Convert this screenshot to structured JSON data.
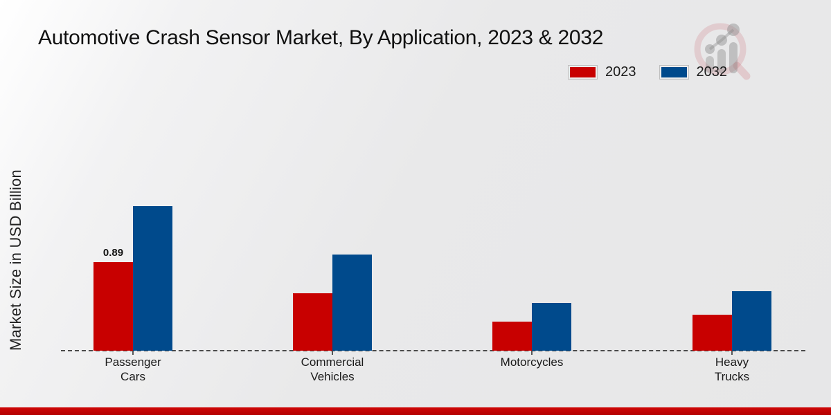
{
  "title": "Automotive Crash Sensor Market, By Application, 2023 & 2032",
  "ylabel": "Market Size in USD Billion",
  "colors": {
    "series_2023": "#c80000",
    "series_2032": "#004a8c",
    "axis_line": "#4a4a4a",
    "bottom_strip": "#c40404",
    "text": "#1a1a1a"
  },
  "legend": {
    "position": "top-right",
    "items": [
      {
        "label": "2023",
        "color": "#c80000"
      },
      {
        "label": "2032",
        "color": "#004a8c"
      }
    ]
  },
  "watermark_icon": "magnifier-bar-chart-logo",
  "chart_data": {
    "type": "bar",
    "title": "Automotive Crash Sensor Market, By Application, 2023 & 2032",
    "xlabel": "",
    "ylabel": "Market Size in USD Billion",
    "categories": [
      "Passenger\nCars",
      "Commercial\nVehicles",
      "Motorcycles",
      "Heavy\nTrucks"
    ],
    "series": [
      {
        "name": "2023",
        "color": "#c80000",
        "values": [
          0.89,
          0.58,
          0.29,
          0.36
        ]
      },
      {
        "name": "2032",
        "color": "#004a8c",
        "values": [
          1.45,
          0.97,
          0.48,
          0.6
        ]
      }
    ],
    "shown_value_labels": [
      {
        "series": "2023",
        "category_index": 0,
        "text": "0.89"
      }
    ],
    "ylim": [
      0,
      1.6
    ],
    "grid": false,
    "y_axis_ticks_visible": false,
    "legend_position": "top-right",
    "baseline_style": "dashed"
  }
}
